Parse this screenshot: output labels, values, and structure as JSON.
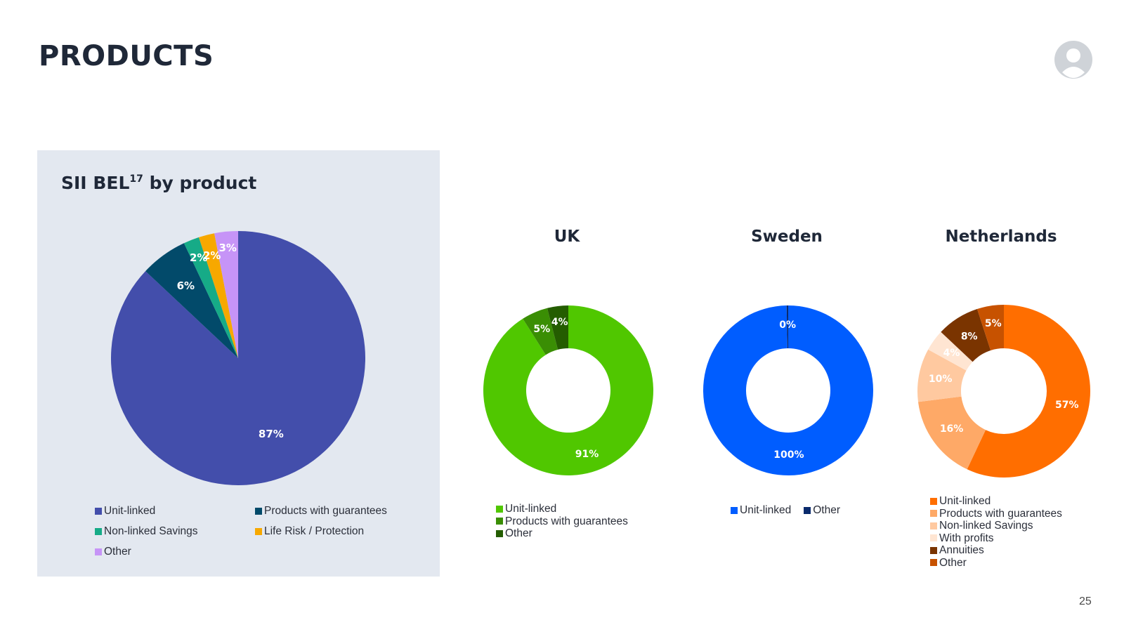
{
  "page": {
    "title": "PRODUCTS",
    "page_number": "25"
  },
  "chart_data": [
    {
      "id": "bel",
      "type": "pie",
      "title": "SII BEL",
      "title_superscript": "17",
      "title_suffix": " by product",
      "categories": [
        "Unit-linked",
        "Products with guarantees",
        "Non-linked Savings",
        "Life Risk / Protection",
        "Other"
      ],
      "values": [
        87,
        6,
        2,
        2,
        3
      ],
      "labels": [
        "87%",
        "6%",
        "2%",
        "2%",
        "3%"
      ],
      "colors": [
        "#434eab",
        "#024a6a",
        "#16ab87",
        "#f7a800",
        "#c694f7"
      ],
      "label_colors": [
        "#ffffff",
        "#ffffff",
        "#ffffff",
        "#ffffff",
        "#ffffff"
      ],
      "legend": "bottom"
    },
    {
      "id": "uk",
      "type": "donut",
      "title": "UK",
      "categories": [
        "Unit-linked",
        "Products with guarantees",
        "Other"
      ],
      "values": [
        91,
        5,
        4
      ],
      "labels": [
        "91%",
        "5%",
        "4%"
      ],
      "colors": [
        "#50c700",
        "#3a8e04",
        "#245d00"
      ],
      "label_colors": [
        "#ffffff",
        "#ffffff",
        "#ffffff"
      ],
      "legend": "bottom"
    },
    {
      "id": "sweden",
      "type": "donut",
      "title": "Sweden",
      "categories": [
        "Unit-linked",
        "Other"
      ],
      "values": [
        99.7,
        0.3
      ],
      "labels": [
        "100%",
        "0%"
      ],
      "colors": [
        "#005dff",
        "#0a2a6c"
      ],
      "label_colors": [
        "#ffffff",
        "#ffffff"
      ],
      "legend": "bottom"
    },
    {
      "id": "netherlands",
      "type": "donut",
      "title": "Netherlands",
      "categories": [
        "Unit-linked",
        "Products with guarantees",
        "Non-linked Savings",
        "With profits",
        "Annuities",
        "Other"
      ],
      "values": [
        57,
        16,
        10,
        4,
        8,
        5
      ],
      "labels": [
        "57%",
        "16%",
        "10%",
        "4%",
        "8%",
        "5%"
      ],
      "colors": [
        "#ff6e00",
        "#fea967",
        "#ffc9a0",
        "#ffe5d2",
        "#7a3400",
        "#c75200"
      ],
      "label_colors": [
        "#ffffff",
        "#2b2f3a",
        "#2b2f3a",
        "#2b2f3a",
        "#ffffff",
        "#ffffff"
      ],
      "legend": "bottom"
    }
  ]
}
